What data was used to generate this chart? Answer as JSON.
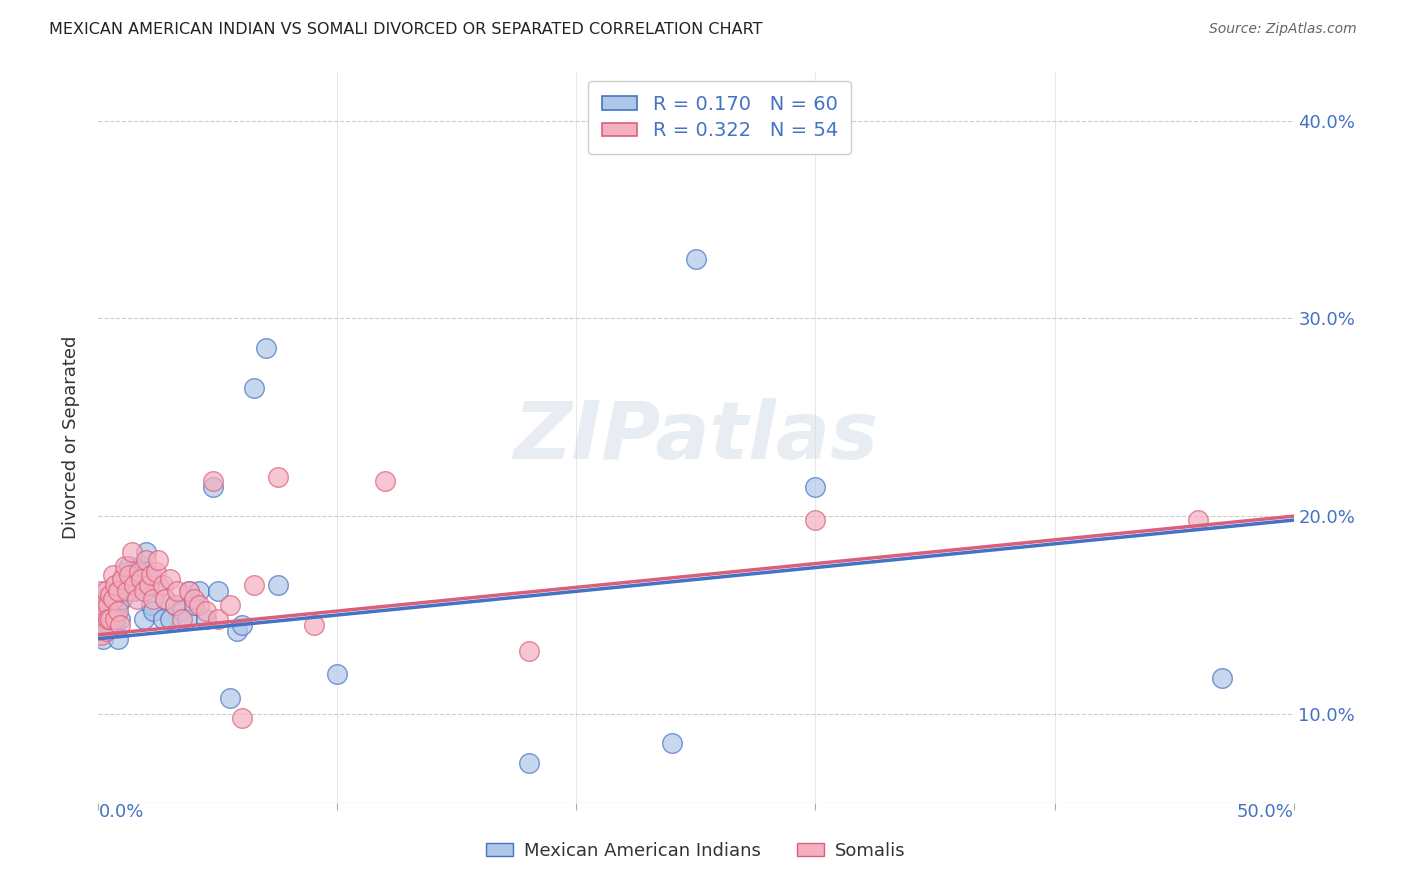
{
  "title": "MEXICAN AMERICAN INDIAN VS SOMALI DIVORCED OR SEPARATED CORRELATION CHART",
  "source": "Source: ZipAtlas.com",
  "ylabel": "Divorced or Separated",
  "legend1": "R = 0.170   N = 60",
  "legend2": "R = 0.322   N = 54",
  "blue_color": "#aec6e8",
  "pink_color": "#f4afc0",
  "line_blue": "#4472c4",
  "line_pink": "#d9607a",
  "watermark": "ZIPatlas",
  "blue_scatter": [
    [
      0.001,
      0.148
    ],
    [
      0.001,
      0.142
    ],
    [
      0.002,
      0.138
    ],
    [
      0.002,
      0.152
    ],
    [
      0.002,
      0.158
    ],
    [
      0.003,
      0.145
    ],
    [
      0.003,
      0.155
    ],
    [
      0.004,
      0.148
    ],
    [
      0.004,
      0.16
    ],
    [
      0.005,
      0.152
    ],
    [
      0.005,
      0.144
    ],
    [
      0.006,
      0.158
    ],
    [
      0.006,
      0.148
    ],
    [
      0.007,
      0.162
    ],
    [
      0.007,
      0.145
    ],
    [
      0.008,
      0.155
    ],
    [
      0.008,
      0.138
    ],
    [
      0.009,
      0.148
    ],
    [
      0.01,
      0.168
    ],
    [
      0.01,
      0.158
    ],
    [
      0.011,
      0.172
    ],
    [
      0.011,
      0.163
    ],
    [
      0.012,
      0.168
    ],
    [
      0.013,
      0.175
    ],
    [
      0.015,
      0.17
    ],
    [
      0.015,
      0.162
    ],
    [
      0.016,
      0.165
    ],
    [
      0.017,
      0.17
    ],
    [
      0.018,
      0.175
    ],
    [
      0.019,
      0.148
    ],
    [
      0.02,
      0.182
    ],
    [
      0.02,
      0.172
    ],
    [
      0.022,
      0.168
    ],
    [
      0.022,
      0.155
    ],
    [
      0.023,
      0.152
    ],
    [
      0.025,
      0.165
    ],
    [
      0.027,
      0.148
    ],
    [
      0.028,
      0.158
    ],
    [
      0.03,
      0.148
    ],
    [
      0.032,
      0.155
    ],
    [
      0.035,
      0.152
    ],
    [
      0.037,
      0.148
    ],
    [
      0.038,
      0.162
    ],
    [
      0.04,
      0.155
    ],
    [
      0.042,
      0.162
    ],
    [
      0.045,
      0.148
    ],
    [
      0.048,
      0.215
    ],
    [
      0.05,
      0.162
    ],
    [
      0.055,
      0.108
    ],
    [
      0.058,
      0.142
    ],
    [
      0.06,
      0.145
    ],
    [
      0.065,
      0.265
    ],
    [
      0.07,
      0.285
    ],
    [
      0.075,
      0.165
    ],
    [
      0.1,
      0.12
    ],
    [
      0.18,
      0.075
    ],
    [
      0.24,
      0.085
    ],
    [
      0.25,
      0.33
    ],
    [
      0.3,
      0.215
    ],
    [
      0.47,
      0.118
    ]
  ],
  "pink_scatter": [
    [
      0.001,
      0.14
    ],
    [
      0.001,
      0.162
    ],
    [
      0.002,
      0.148
    ],
    [
      0.002,
      0.155
    ],
    [
      0.003,
      0.142
    ],
    [
      0.003,
      0.162
    ],
    [
      0.004,
      0.155
    ],
    [
      0.004,
      0.148
    ],
    [
      0.005,
      0.16
    ],
    [
      0.005,
      0.148
    ],
    [
      0.006,
      0.17
    ],
    [
      0.006,
      0.158
    ],
    [
      0.007,
      0.165
    ],
    [
      0.007,
      0.148
    ],
    [
      0.008,
      0.162
    ],
    [
      0.008,
      0.152
    ],
    [
      0.009,
      0.145
    ],
    [
      0.01,
      0.168
    ],
    [
      0.011,
      0.175
    ],
    [
      0.012,
      0.162
    ],
    [
      0.013,
      0.17
    ],
    [
      0.014,
      0.182
    ],
    [
      0.015,
      0.165
    ],
    [
      0.016,
      0.158
    ],
    [
      0.017,
      0.172
    ],
    [
      0.018,
      0.168
    ],
    [
      0.019,
      0.162
    ],
    [
      0.02,
      0.178
    ],
    [
      0.021,
      0.165
    ],
    [
      0.022,
      0.17
    ],
    [
      0.023,
      0.158
    ],
    [
      0.024,
      0.172
    ],
    [
      0.025,
      0.178
    ],
    [
      0.027,
      0.165
    ],
    [
      0.028,
      0.158
    ],
    [
      0.03,
      0.168
    ],
    [
      0.032,
      0.155
    ],
    [
      0.033,
      0.162
    ],
    [
      0.035,
      0.148
    ],
    [
      0.038,
      0.162
    ],
    [
      0.04,
      0.158
    ],
    [
      0.042,
      0.155
    ],
    [
      0.045,
      0.152
    ],
    [
      0.048,
      0.218
    ],
    [
      0.05,
      0.148
    ],
    [
      0.055,
      0.155
    ],
    [
      0.06,
      0.098
    ],
    [
      0.065,
      0.165
    ],
    [
      0.075,
      0.22
    ],
    [
      0.09,
      0.145
    ],
    [
      0.12,
      0.218
    ],
    [
      0.18,
      0.132
    ],
    [
      0.3,
      0.198
    ],
    [
      0.46,
      0.198
    ]
  ],
  "xlim": [
    0.0,
    0.5
  ],
  "ylim": [
    0.055,
    0.425
  ],
  "x_ticks": [
    0.0,
    0.1,
    0.2,
    0.3,
    0.4,
    0.5
  ],
  "y_ticks": [
    0.1,
    0.2,
    0.3,
    0.4
  ],
  "blue_line_x": [
    0.0,
    0.5
  ],
  "blue_line_y": [
    0.138,
    0.198
  ],
  "pink_line_x": [
    0.0,
    0.5
  ],
  "pink_line_y": [
    0.14,
    0.2
  ]
}
